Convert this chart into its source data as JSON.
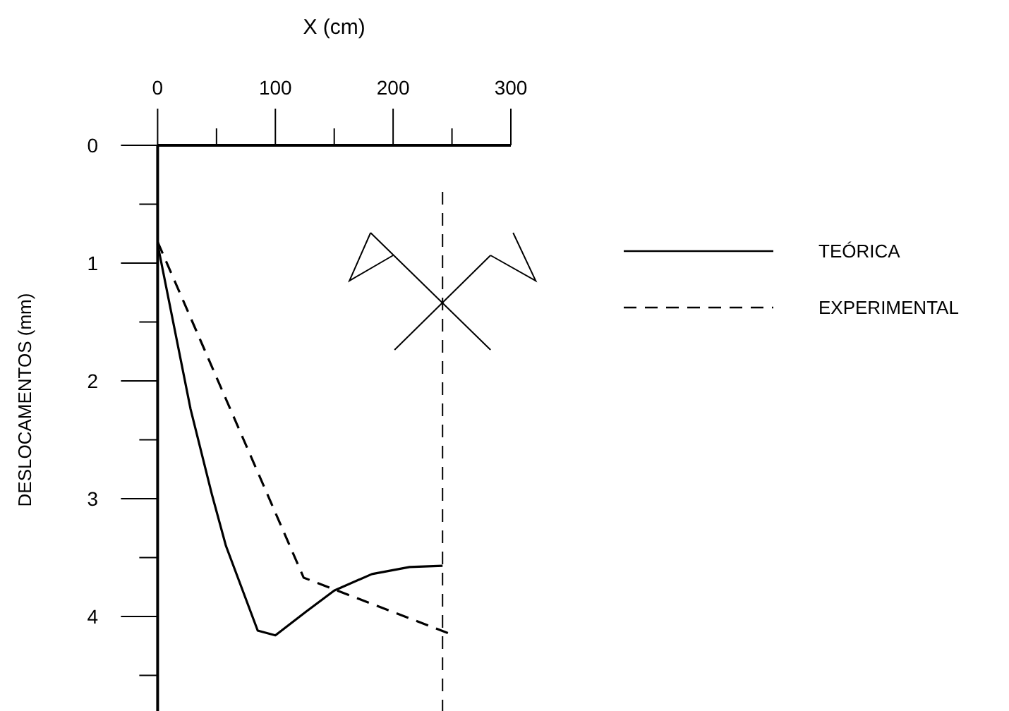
{
  "chart_data": {
    "type": "line",
    "xlabel": "X (cm)",
    "ylabel": "DESLOCAMENTOS (mm)",
    "xlim": [
      0,
      300
    ],
    "xticks": [
      0,
      {
        "value": 50,
        "label": null
      },
      100,
      {
        "value": 150,
        "label": null
      },
      200,
      {
        "value": 250,
        "label": null
      },
      300
    ],
    "ylim": [
      4.8,
      0
    ],
    "yticks": [
      0,
      {
        "value": 0.5,
        "label": null
      },
      1,
      {
        "value": 1.5,
        "label": null
      },
      2,
      {
        "value": 2.5,
        "label": null
      },
      3,
      {
        "value": 3.5,
        "label": null
      },
      4,
      {
        "value": 4.5,
        "label": null
      }
    ],
    "series": [
      {
        "name": "TEÓRICA",
        "color": "#000000",
        "line_style": "solid",
        "x": [
          0,
          28,
          46,
          58,
          85,
          100,
          126,
          150,
          182,
          214,
          242
        ],
        "values": [
          0.84,
          2.24,
          2.96,
          3.4,
          4.12,
          4.16,
          3.96,
          3.78,
          3.64,
          3.58,
          3.57
        ]
      },
      {
        "name": "EXPERIMENTAL",
        "color": "#000000",
        "line_style": "dashed",
        "x": [
          0,
          124,
          249
        ],
        "values": [
          0.82,
          3.67,
          4.15
        ]
      }
    ],
    "ref_lines": [
      {
        "axis": "x",
        "value": 242,
        "color": "#000000",
        "line_style": "dashed"
      }
    ],
    "legend": "right",
    "grid": false,
    "marker": "none"
  }
}
